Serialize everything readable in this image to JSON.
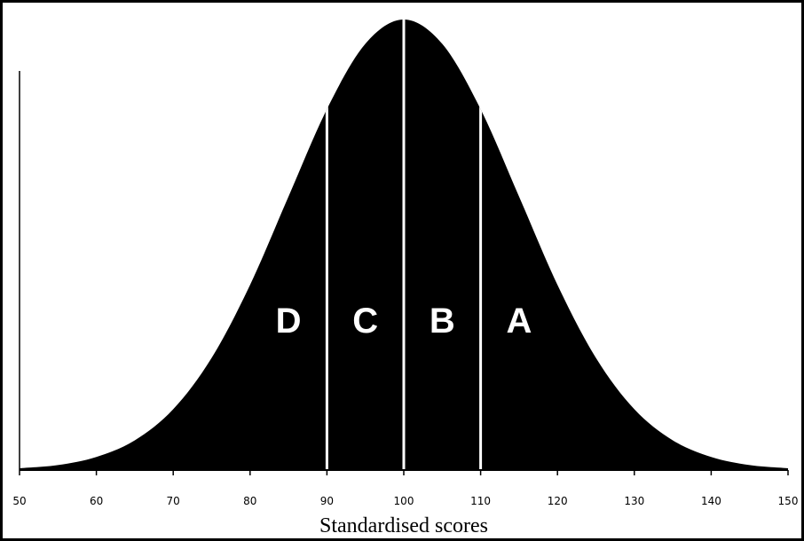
{
  "chart_data": {
    "type": "area",
    "x_label": "Standardised scores",
    "x": [
      50,
      55,
      60,
      65,
      70,
      75,
      80,
      85,
      90,
      95,
      100,
      105,
      110,
      115,
      120,
      125,
      130,
      135,
      140,
      145,
      150
    ],
    "values": [
      0.004,
      0.011,
      0.029,
      0.066,
      0.135,
      0.249,
      0.411,
      0.607,
      0.801,
      0.946,
      1,
      0.946,
      0.801,
      0.607,
      0.411,
      0.249,
      0.135,
      0.066,
      0.029,
      0.011,
      0.004
    ],
    "color": "#000000",
    "xlim": [
      50,
      150
    ],
    "xticks": [
      50,
      60,
      70,
      80,
      90,
      100,
      110,
      120,
      130,
      140,
      150
    ],
    "ylim": [
      0,
      1
    ],
    "dividers": [
      90,
      100,
      110
    ],
    "divider_color": "#ffffff",
    "zone_labels": [
      "D",
      "C",
      "B",
      "A"
    ]
  }
}
